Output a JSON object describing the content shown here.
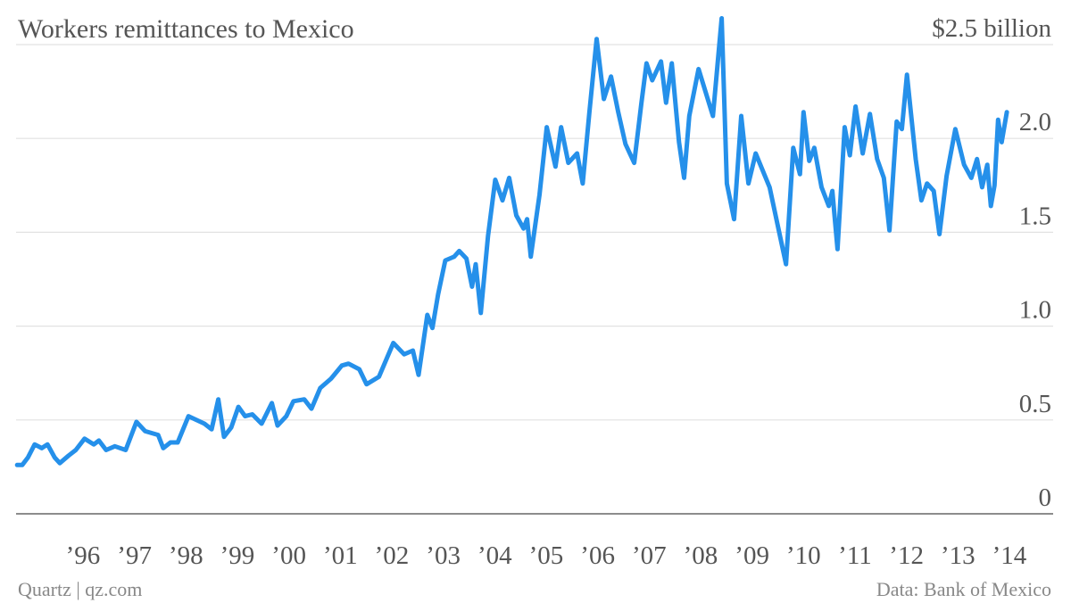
{
  "chart_data": {
    "type": "line",
    "title": "Workers remittances to Mexico",
    "source": "Data: Bank of Mexico",
    "credit": "Quartz | qz.com",
    "color": "#2590ea",
    "grid": true,
    "xlim": [
      1995.2,
      2015.35
    ],
    "ylim": [
      0,
      2.7
    ],
    "xticks": [
      {
        "value": 1996.5,
        "label": "’96"
      },
      {
        "value": 1997.5,
        "label": "’97"
      },
      {
        "value": 1998.5,
        "label": "’98"
      },
      {
        "value": 1999.5,
        "label": "’99"
      },
      {
        "value": 2000.5,
        "label": "’00"
      },
      {
        "value": 2001.5,
        "label": "’01"
      },
      {
        "value": 2002.5,
        "label": "’02"
      },
      {
        "value": 2003.5,
        "label": "’03"
      },
      {
        "value": 2004.5,
        "label": "’04"
      },
      {
        "value": 2005.5,
        "label": "’05"
      },
      {
        "value": 2006.5,
        "label": "’06"
      },
      {
        "value": 2007.5,
        "label": "’07"
      },
      {
        "value": 2008.5,
        "label": "’08"
      },
      {
        "value": 2009.5,
        "label": "’09"
      },
      {
        "value": 2010.5,
        "label": "’10"
      },
      {
        "value": 2011.5,
        "label": "’11"
      },
      {
        "value": 2012.5,
        "label": "’12"
      },
      {
        "value": 2013.5,
        "label": "’13"
      },
      {
        "value": 2014.5,
        "label": "’14"
      }
    ],
    "yticks": [
      0,
      0.5,
      {
        "value": 1,
        "label": "1.0"
      },
      1.5,
      {
        "value": 2,
        "label": "2.0"
      },
      {
        "value": 2.5,
        "label": "$2.5 billion"
      }
    ],
    "x": [
      1995.22,
      1995.32,
      1995.43,
      1995.56,
      1995.7,
      1995.81,
      1995.95,
      1996.05,
      1996.22,
      1996.36,
      1996.53,
      1996.71,
      1996.81,
      1996.95,
      1997.12,
      1997.33,
      1997.54,
      1997.71,
      1997.96,
      1998.06,
      1998.2,
      1998.34,
      1998.55,
      1998.86,
      1999.0,
      1999.13,
      1999.24,
      1999.38,
      1999.52,
      1999.65,
      1999.79,
      1999.97,
      2000.17,
      2000.28,
      2000.45,
      2000.59,
      2000.8,
      2000.94,
      2001.11,
      2001.32,
      2001.53,
      2001.66,
      2001.87,
      2002.01,
      2002.25,
      2002.53,
      2002.74,
      2002.91,
      2003.02,
      2003.19,
      2003.29,
      2003.4,
      2003.54,
      2003.71,
      2003.81,
      2003.95,
      2004.06,
      2004.13,
      2004.23,
      2004.37,
      2004.51,
      2004.65,
      2004.78,
      2004.92,
      2005.06,
      2005.13,
      2005.2,
      2005.37,
      2005.51,
      2005.68,
      2005.79,
      2005.93,
      2006.1,
      2006.21,
      2006.34,
      2006.48,
      2006.62,
      2006.76,
      2006.9,
      2007.04,
      2007.21,
      2007.35,
      2007.45,
      2007.56,
      2007.73,
      2007.83,
      2007.94,
      2008.08,
      2008.18,
      2008.28,
      2008.46,
      2008.74,
      2008.91,
      2009.01,
      2009.15,
      2009.29,
      2009.43,
      2009.57,
      2009.84,
      2010.02,
      2010.16,
      2010.3,
      2010.43,
      2010.5,
      2010.61,
      2010.71,
      2010.85,
      2010.99,
      2011.06,
      2011.16,
      2011.3,
      2011.4,
      2011.51,
      2011.65,
      2011.79,
      2011.93,
      2012.06,
      2012.17,
      2012.31,
      2012.41,
      2012.51,
      2012.68,
      2012.79,
      2012.9,
      2013.03,
      2013.14,
      2013.28,
      2013.45,
      2013.62,
      2013.76,
      2013.87,
      2013.97,
      2014.07,
      2014.14,
      2014.21,
      2014.28,
      2014.35,
      2014.45
    ],
    "series": [
      {
        "name": "Workers remittances",
        "color": "#2590ea",
        "values": [
          0.26,
          0.26,
          0.3,
          0.37,
          0.35,
          0.37,
          0.3,
          0.27,
          0.31,
          0.34,
          0.4,
          0.37,
          0.39,
          0.34,
          0.36,
          0.34,
          0.49,
          0.44,
          0.42,
          0.35,
          0.38,
          0.38,
          0.52,
          0.48,
          0.45,
          0.61,
          0.41,
          0.46,
          0.57,
          0.52,
          0.53,
          0.48,
          0.59,
          0.47,
          0.52,
          0.6,
          0.61,
          0.56,
          0.67,
          0.72,
          0.79,
          0.8,
          0.77,
          0.69,
          0.73,
          0.91,
          0.85,
          0.87,
          0.74,
          1.06,
          0.99,
          1.17,
          1.35,
          1.37,
          1.4,
          1.36,
          1.21,
          1.33,
          1.07,
          1.48,
          1.78,
          1.67,
          1.79,
          1.59,
          1.52,
          1.57,
          1.37,
          1.7,
          2.06,
          1.85,
          2.06,
          1.87,
          1.92,
          1.76,
          2.14,
          2.53,
          2.21,
          2.33,
          2.14,
          1.97,
          1.87,
          2.19,
          2.4,
          2.31,
          2.41,
          2.19,
          2.4,
          1.98,
          1.79,
          2.12,
          2.37,
          2.12,
          2.64,
          1.76,
          1.57,
          2.12,
          1.76,
          1.92,
          1.74,
          1.51,
          1.33,
          1.95,
          1.81,
          2.14,
          1.88,
          1.95,
          1.74,
          1.64,
          1.72,
          1.41,
          2.06,
          1.91,
          2.17,
          1.92,
          2.13,
          1.89,
          1.79,
          1.51,
          2.09,
          2.05,
          2.34,
          1.89,
          1.67,
          1.76,
          1.72,
          1.49,
          1.8,
          2.05,
          1.86,
          1.79,
          1.89,
          1.74,
          1.86,
          1.64,
          1.75,
          2.1,
          1.98,
          2.14
        ]
      }
    ]
  }
}
